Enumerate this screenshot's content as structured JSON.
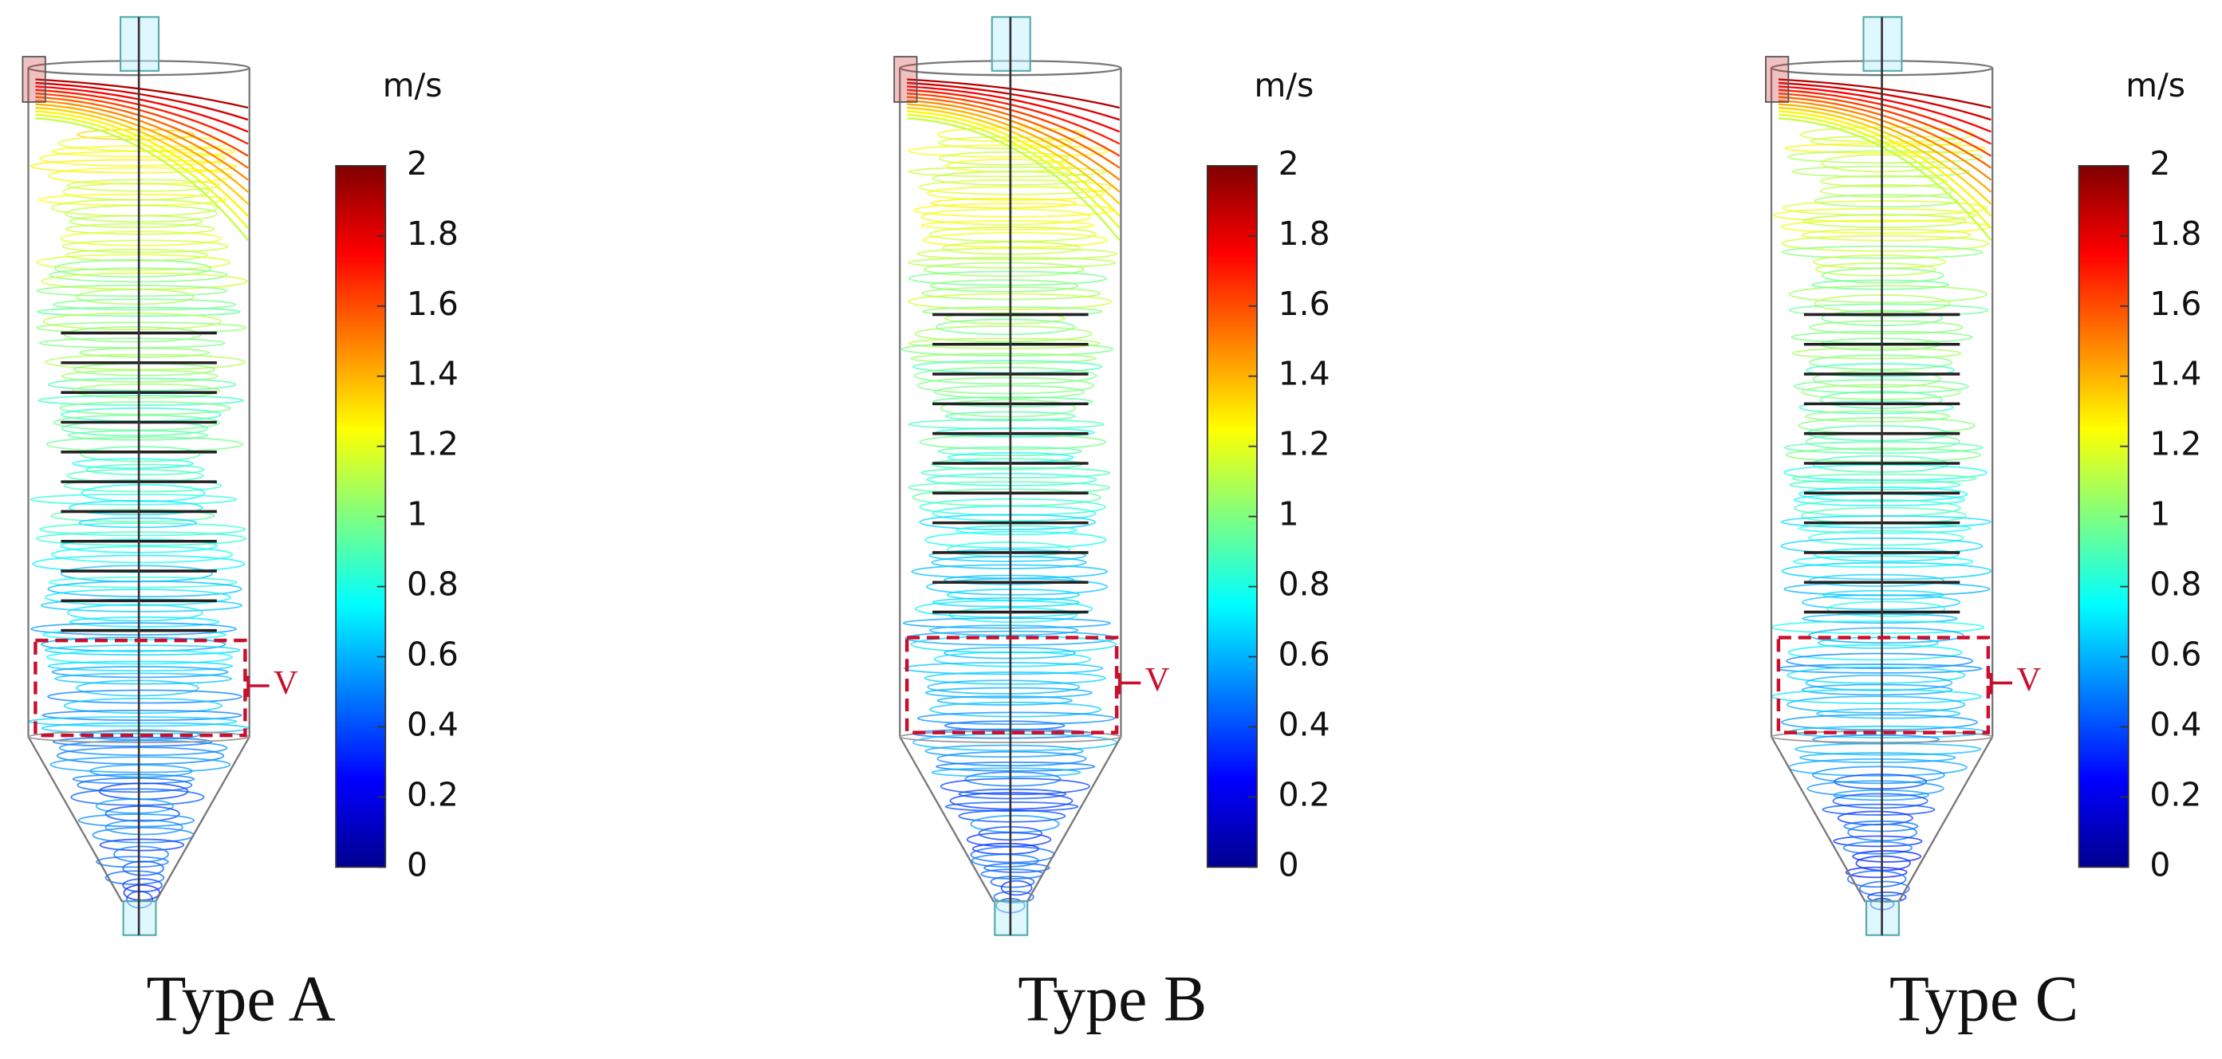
{
  "panels": [
    {
      "label": "Type A",
      "unit": "m/s",
      "marker": "V",
      "colorbar_ticks": [
        0,
        0.2,
        0.4,
        0.6,
        0.8,
        1,
        1.2,
        1.4,
        1.6,
        1.8,
        2
      ]
    },
    {
      "label": "Type B",
      "unit": "m/s",
      "marker": "V",
      "colorbar_ticks": [
        0,
        0.2,
        0.4,
        0.6,
        0.8,
        1,
        1.2,
        1.4,
        1.6,
        1.8,
        2
      ]
    },
    {
      "label": "Type C",
      "unit": "m/s",
      "marker": "V",
      "colorbar_ticks": [
        0,
        0.2,
        0.4,
        0.6,
        0.8,
        1,
        1.2,
        1.4,
        1.6,
        1.8,
        2
      ]
    }
  ]
}
